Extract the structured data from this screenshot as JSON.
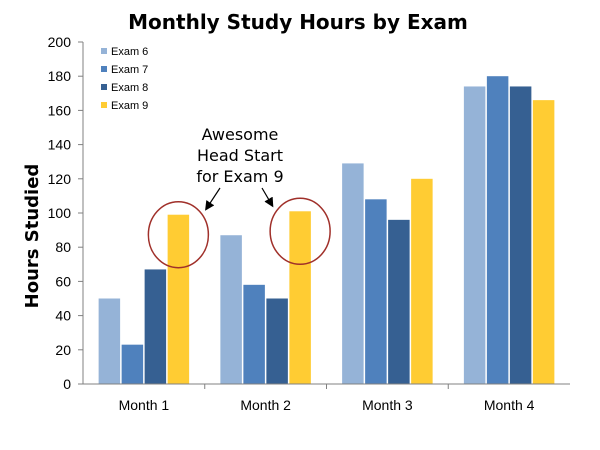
{
  "chart_data": {
    "type": "bar",
    "title": "Monthly Study Hours by Exam",
    "xlabel": "",
    "ylabel": "Hours Studied",
    "ylim": [
      0,
      200
    ],
    "yticks": [
      0,
      20,
      40,
      60,
      80,
      100,
      120,
      140,
      160,
      180,
      200
    ],
    "categories": [
      "Month 1",
      "Month 2",
      "Month 3",
      "Month 4"
    ],
    "series": [
      {
        "name": "Exam 6",
        "color": "#95B3D7",
        "values": [
          50,
          87,
          129,
          174
        ]
      },
      {
        "name": "Exam 7",
        "color": "#4F81BD",
        "values": [
          23,
          58,
          108,
          180
        ]
      },
      {
        "name": "Exam 8",
        "color": "#366092",
        "values": [
          67,
          50,
          96,
          174
        ]
      },
      {
        "name": "Exam 9",
        "color": "#FFCC33",
        "values": [
          99,
          101,
          120,
          166
        ]
      }
    ],
    "legend": {
      "position": "top-left"
    },
    "grid": false,
    "annotation": {
      "lines": [
        "Awesome",
        "Head Start",
        "for Exam 9"
      ],
      "highlighted": [
        {
          "series": "Exam 9",
          "category": "Month 1"
        },
        {
          "series": "Exam 9",
          "category": "Month 2"
        }
      ],
      "circle_color": "#A0302A"
    }
  }
}
